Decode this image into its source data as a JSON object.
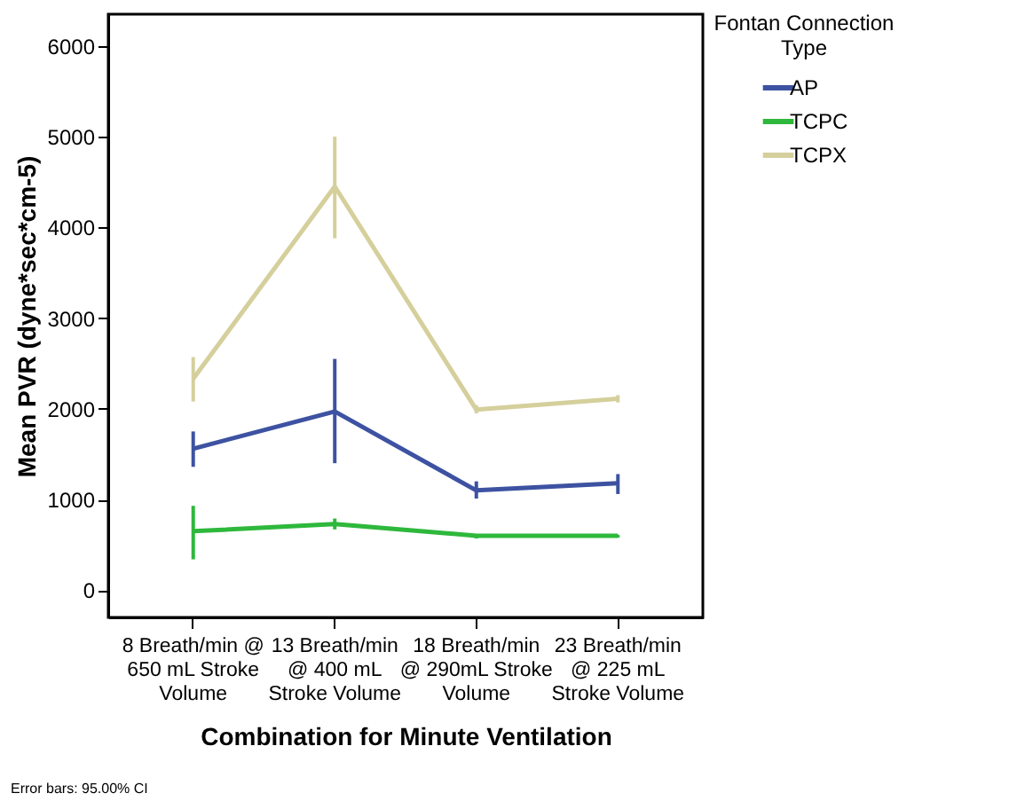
{
  "chart_data": {
    "type": "line",
    "xlabel": "Combination for Minute Ventilation",
    "ylabel": "Mean PVR (dyne*sec*cm-5)",
    "legend_title": "Fontan Connection Type",
    "legend": "top right",
    "grid": false,
    "marker": "none",
    "line_style": "solid",
    "categories": [
      "8 Breath/min @ 650 mL Stroke Volume",
      "13 Breath/min @ 400 mL Stroke Volume",
      "18 Breath/min @ 290mL Stroke Volume",
      "23 Breath/min @ 225 mL Stroke Volume"
    ],
    "ylim": [
      -300,
      6350
    ],
    "yticks": [
      0,
      1000,
      2000,
      3000,
      4000,
      5000,
      6000
    ],
    "series": [
      {
        "name": "AP",
        "color": "#3d52a1",
        "values": [
          1560,
          1970,
          1100,
          1180
        ],
        "errors": [
          [
            1360,
            1750
          ],
          [
            1400,
            2550
          ],
          [
            1010,
            1200
          ],
          [
            1060,
            1280
          ]
        ]
      },
      {
        "name": "TCPC",
        "color": "#2eb83c",
        "values": [
          650,
          730,
          600,
          600
        ],
        "errors": [
          [
            340,
            930
          ],
          [
            670,
            790
          ],
          [
            570,
            620
          ],
          [
            580,
            610
          ]
        ]
      },
      {
        "name": "TCPX",
        "color": "#d5cf9c",
        "values": [
          2330,
          4450,
          1990,
          2110
        ],
        "errors": [
          [
            2080,
            2570
          ],
          [
            3880,
            5000
          ],
          [
            1950,
            2040
          ],
          [
            2070,
            2150
          ]
        ]
      }
    ],
    "annotations": [
      "Error bars: 95.00% CI"
    ]
  }
}
